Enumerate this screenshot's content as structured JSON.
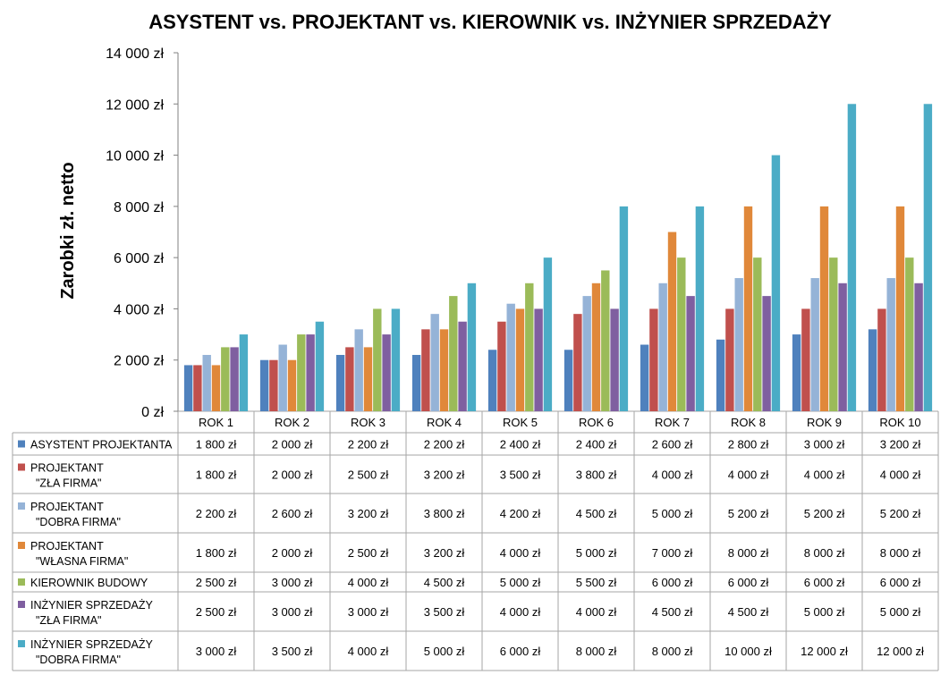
{
  "chart_data": {
    "type": "bar",
    "title": "ASYSTENT vs. PROJEKTANT vs. KIEROWNIK vs. INŻYNIER SPRZEDAŻY",
    "ylabel": "Zarobki zł. netto",
    "xlabel": "",
    "ylim": [
      0,
      14000
    ],
    "yticks": [
      0,
      2000,
      4000,
      6000,
      8000,
      10000,
      12000,
      14000
    ],
    "ytick_labels": [
      "0 zł",
      "2 000 zł",
      "4 000 zł",
      "6 000 zł",
      "8 000 zł",
      "10 000 zł",
      "12 000 zł",
      "14 000 zł"
    ],
    "grid": false,
    "legend_placement": "data-table",
    "categories": [
      "ROK 1",
      "ROK 2",
      "ROK 3",
      "ROK 4",
      "ROK 5",
      "ROK 6",
      "ROK 7",
      "ROK 8",
      "ROK 9",
      "ROK 10"
    ],
    "series": [
      {
        "name": "ASYSTENT PROJEKTANTA",
        "name_lines": [
          "ASYSTENT PROJEKTANTA"
        ],
        "color": "#4f81bd",
        "values": [
          1800,
          2000,
          2200,
          2200,
          2400,
          2400,
          2600,
          2800,
          3000,
          3200
        ],
        "labels": [
          "1 800 zł",
          "2 000 zł",
          "2 200 zł",
          "2 200 zł",
          "2 400 zł",
          "2 400 zł",
          "2 600 zł",
          "2 800 zł",
          "3 000 zł",
          "3 200 zł"
        ]
      },
      {
        "name": "PROJEKTANT \"ZŁA FIRMA\"",
        "name_lines": [
          "PROJEKTANT",
          "\"ZŁA FIRMA\""
        ],
        "color": "#c0504d",
        "values": [
          1800,
          2000,
          2500,
          3200,
          3500,
          3800,
          4000,
          4000,
          4000,
          4000
        ],
        "labels": [
          "1 800 zł",
          "2 000 zł",
          "2 500 zł",
          "3 200 zł",
          "3 500 zł",
          "3 800 zł",
          "4 000 zł",
          "4 000 zł",
          "4 000 zł",
          "4 000 zł"
        ]
      },
      {
        "name": "PROJEKTANT \"DOBRA FIRMA\"",
        "name_lines": [
          "PROJEKTANT",
          "\"DOBRA FIRMA\""
        ],
        "color": "#95b3d7",
        "values": [
          2200,
          2600,
          3200,
          3800,
          4200,
          4500,
          5000,
          5200,
          5200,
          5200
        ],
        "labels": [
          "2 200 zł",
          "2 600 zł",
          "3 200 zł",
          "3 800 zł",
          "4 200 zł",
          "4 500 zł",
          "5 000 zł",
          "5 200 zł",
          "5 200 zł",
          "5 200 zł"
        ]
      },
      {
        "name": "PROJEKTANT \"WŁASNA FIRMA\"",
        "name_lines": [
          "PROJEKTANT",
          "\"WŁASNA FIRMA\""
        ],
        "color": "#e0883a",
        "values": [
          1800,
          2000,
          2500,
          3200,
          4000,
          5000,
          7000,
          8000,
          8000,
          8000
        ],
        "labels": [
          "1 800 zł",
          "2 000 zł",
          "2 500 zł",
          "3 200 zł",
          "4 000 zł",
          "5 000 zł",
          "7 000 zł",
          "8 000 zł",
          "8 000 zł",
          "8 000 zł"
        ]
      },
      {
        "name": "KIEROWNIK BUDOWY",
        "name_lines": [
          "KIEROWNIK BUDOWY"
        ],
        "color": "#9bbb59",
        "values": [
          2500,
          3000,
          4000,
          4500,
          5000,
          5500,
          6000,
          6000,
          6000,
          6000
        ],
        "labels": [
          "2 500 zł",
          "3 000 zł",
          "4 000 zł",
          "4 500 zł",
          "5 000 zł",
          "5 500 zł",
          "6 000 zł",
          "6 000 zł",
          "6 000 zł",
          "6 000 zł"
        ]
      },
      {
        "name": "INŻYNIER SPRZEDAŻY \"ZŁA FIRMA\"",
        "name_lines": [
          "INŻYNIER SPRZEDAŻY",
          "\"ZŁA FIRMA\""
        ],
        "color": "#7f5fa0",
        "values": [
          2500,
          3000,
          3000,
          3500,
          4000,
          4000,
          4500,
          4500,
          5000,
          5000
        ],
        "labels": [
          "2 500 zł",
          "3 000 zł",
          "3 000 zł",
          "3 500 zł",
          "4 000 zł",
          "4 000 zł",
          "4 500 zł",
          "4 500 zł",
          "5 000 zł",
          "5 000 zł"
        ]
      },
      {
        "name": "INŻYNIER SPRZEDAŻY \"DOBRA FIRMA\"",
        "name_lines": [
          "INŻYNIER SPRZEDAŻY",
          "\"DOBRA FIRMA\""
        ],
        "color": "#4bacc6",
        "values": [
          3000,
          3500,
          4000,
          5000,
          6000,
          8000,
          8000,
          10000,
          12000,
          12000
        ],
        "labels": [
          "3 000 zł",
          "3 500 zł",
          "4 000 zł",
          "5 000 zł",
          "6 000 zł",
          "8 000 zł",
          "8 000 zł",
          "10 000 zł",
          "12 000 zł",
          "12 000 zł"
        ]
      }
    ]
  }
}
